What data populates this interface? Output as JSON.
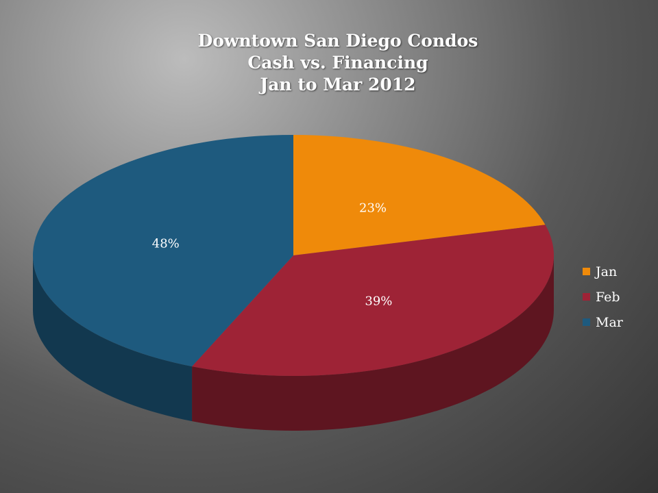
{
  "chart_data": {
    "type": "pie",
    "title_lines": [
      "Downtown San Diego Condos",
      "Cash vs. Financing",
      "Jan to Mar 2012"
    ],
    "categories": [
      "Jan",
      "Feb",
      "Mar"
    ],
    "values": [
      23,
      39,
      48
    ],
    "value_labels": [
      "23%",
      "39%",
      "48%"
    ],
    "legend_position": "right",
    "style": "3d",
    "colors": [
      "#ef8a0a",
      "#9e2336",
      "#1e5a7e"
    ],
    "side_colors": [
      "#b0650a",
      "#5e1520",
      "#12384f"
    ]
  }
}
